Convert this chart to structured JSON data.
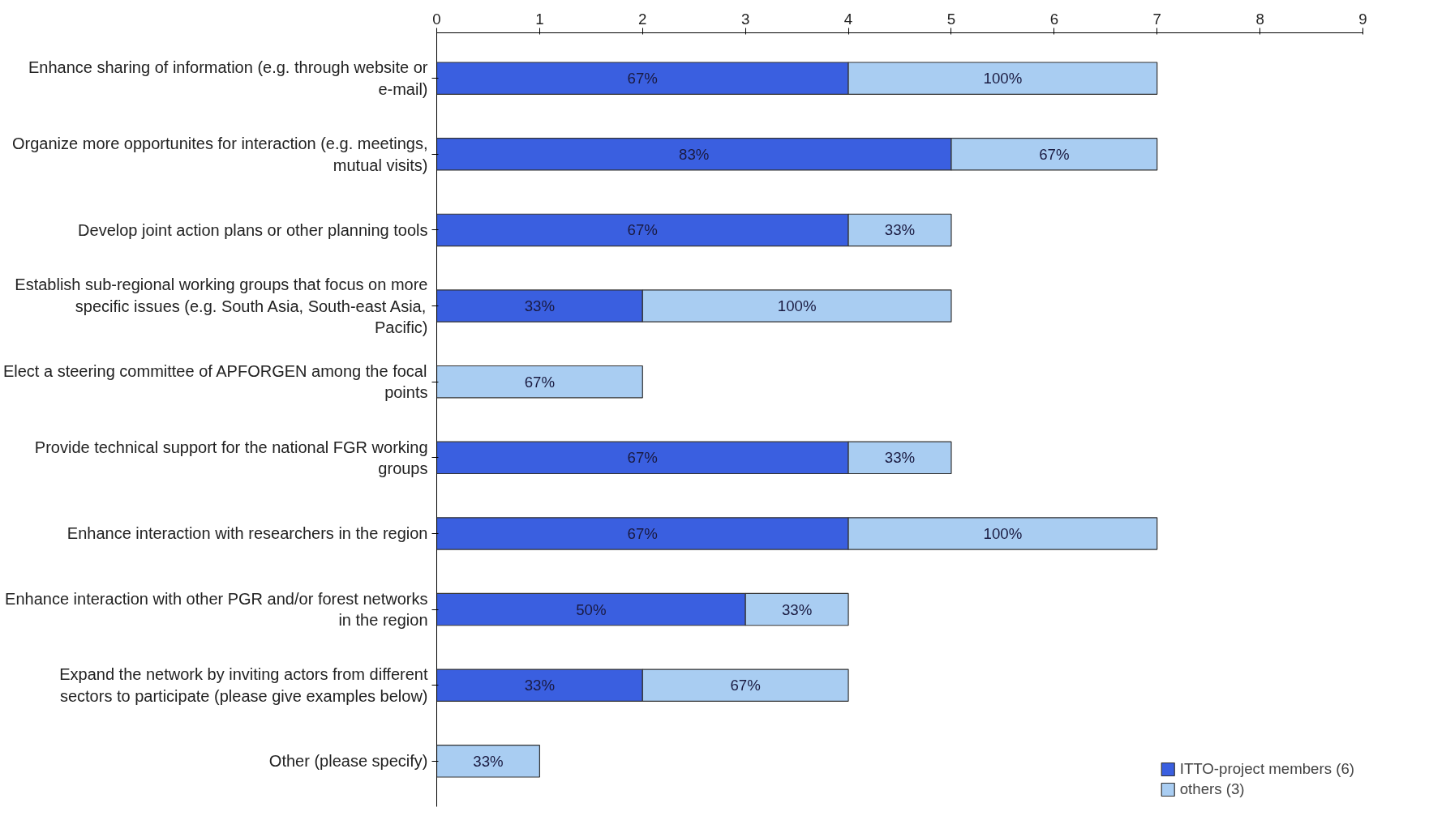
{
  "chart_data": {
    "type": "bar",
    "orientation": "horizontal",
    "stacked": true,
    "categories": [
      "Enhance sharing of information (e.g. through website or e-mail)",
      "Organize more opportunites for interaction (e.g. meetings, mutual visits)",
      "Develop joint action plans or other planning tools",
      "Establish sub-regional working groups that focus on more specific issues (e.g. South Asia, South-east Asia, Pacific)",
      "Elect a steering committee of APFORGEN among the focal points",
      "Provide technical support for the national FGR working groups",
      "Enhance interaction with researchers in the region",
      "Enhance interaction with other PGR and/or forest networks in the region",
      "Expand the network by inviting actors from different sectors to participate (please give examples below)",
      "Other (please specify)"
    ],
    "series": [
      {
        "name": "ITTO-project members (6)",
        "color": "#3a5fe0",
        "values": [
          4,
          5,
          4,
          2,
          null,
          4,
          4,
          3,
          2,
          null
        ]
      },
      {
        "name": "others (3)",
        "color": "#a9cdf2",
        "values": [
          3,
          2,
          1,
          3,
          2,
          1,
          3,
          1,
          2,
          1
        ]
      }
    ],
    "annotations": [
      "67%",
      "100%",
      "83%",
      "67%",
      "67%",
      "33%",
      "33%",
      "100%",
      "67%",
      "67%",
      "33%",
      "67%",
      "100%",
      "50%",
      "33%",
      "33%",
      "67%",
      "33%"
    ],
    "xlim": [
      0,
      9
    ],
    "xticks": [
      0,
      1,
      2,
      3,
      4,
      5,
      6,
      7,
      8,
      9
    ],
    "grid": false,
    "legend": "bottom right"
  }
}
